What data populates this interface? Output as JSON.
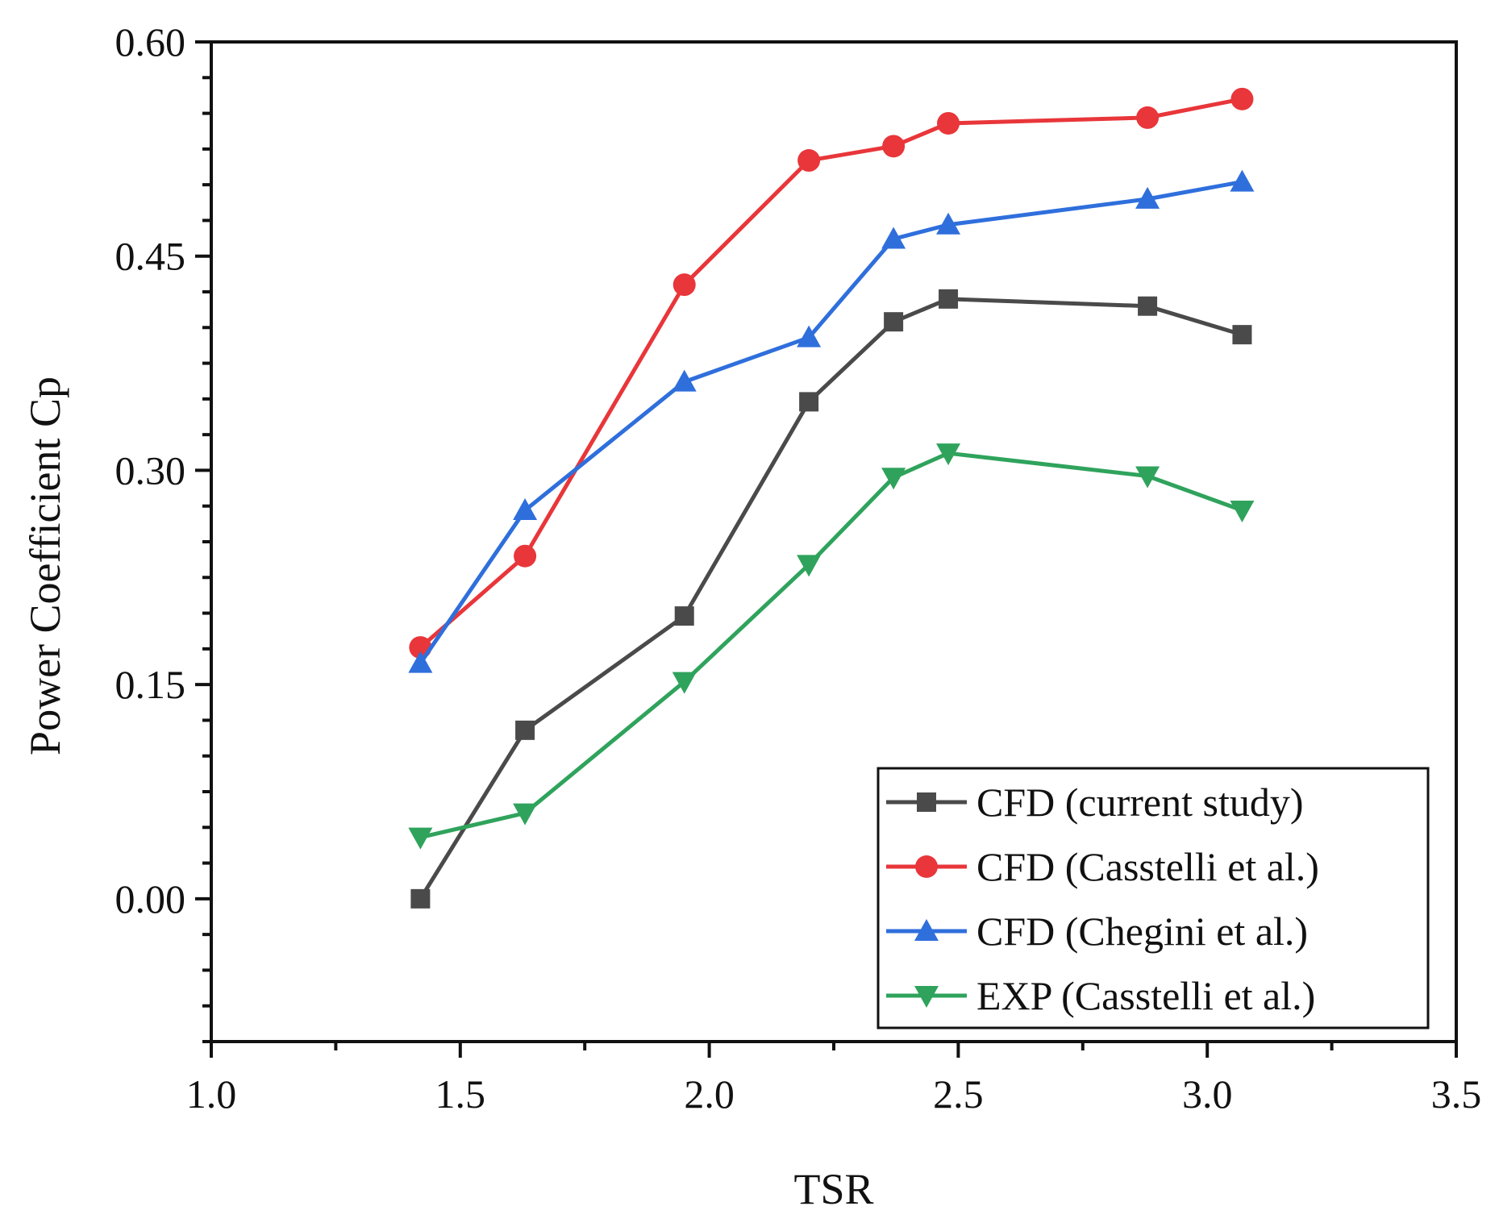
{
  "chart_data": {
    "type": "line",
    "title": "",
    "xlabel": "TSR",
    "ylabel": "Power Coefficient Cp",
    "xlim": [
      1.0,
      3.5
    ],
    "ylim": [
      -0.1,
      0.6
    ],
    "xticks": [
      1.0,
      1.5,
      2.0,
      2.5,
      3.0,
      3.5
    ],
    "xtick_labels": [
      "1.0",
      "1.5",
      "2.0",
      "2.5",
      "3.0",
      "3.5"
    ],
    "yticks": [
      0.0,
      0.15,
      0.3,
      0.45,
      0.6
    ],
    "ytick_labels": [
      "0.00",
      "0.15",
      "0.30",
      "0.45",
      "0.60"
    ],
    "grid": false,
    "legend_position": "bottom-right",
    "series": [
      {
        "name": "CFD (current study)",
        "color": "#4a4a4a",
        "marker": "square",
        "x": [
          1.42,
          1.63,
          1.95,
          2.2,
          2.37,
          2.48,
          2.88,
          3.07
        ],
        "y": [
          0.0,
          0.118,
          0.198,
          0.348,
          0.404,
          0.42,
          0.415,
          0.395
        ]
      },
      {
        "name": "CFD (Casstelli et al.)",
        "color": "#e8363a",
        "marker": "circle",
        "x": [
          1.42,
          1.63,
          1.95,
          2.2,
          2.37,
          2.48,
          2.88,
          3.07
        ],
        "y": [
          0.176,
          0.24,
          0.43,
          0.517,
          0.527,
          0.543,
          0.547,
          0.56
        ]
      },
      {
        "name": "CFD (Chegini et al.)",
        "color": "#2f6fdc",
        "marker": "triangle-up",
        "x": [
          1.42,
          1.63,
          1.95,
          2.2,
          2.37,
          2.48,
          2.88,
          3.07
        ],
        "y": [
          0.165,
          0.272,
          0.362,
          0.393,
          0.462,
          0.472,
          0.49,
          0.502
        ]
      },
      {
        "name": "EXP (Casstelli et al.)",
        "color": "#2fa35c",
        "marker": "triangle-down",
        "x": [
          1.42,
          1.63,
          1.95,
          2.2,
          2.37,
          2.48,
          2.88,
          3.07
        ],
        "y": [
          0.043,
          0.06,
          0.152,
          0.234,
          0.295,
          0.312,
          0.296,
          0.272
        ]
      }
    ]
  }
}
